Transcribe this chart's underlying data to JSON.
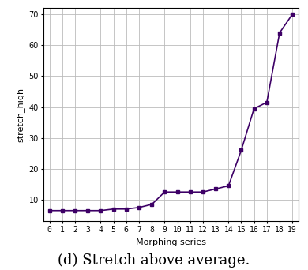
{
  "x": [
    0,
    1,
    2,
    3,
    4,
    5,
    6,
    7,
    8,
    9,
    10,
    11,
    12,
    13,
    14,
    15,
    16,
    17,
    18,
    19
  ],
  "y": [
    6.5,
    6.5,
    6.5,
    6.5,
    6.5,
    7.0,
    7.0,
    7.5,
    8.5,
    12.5,
    12.5,
    12.5,
    12.5,
    13.5,
    14.5,
    26.0,
    39.5,
    41.5,
    64.0,
    70.0
  ],
  "line_color": "#3d0066",
  "marker": "s",
  "marker_size": 2.5,
  "linewidth": 1.2,
  "xlabel": "Morphing series",
  "ylabel": "stretch_high",
  "xlim": [
    -0.5,
    19.5
  ],
  "ylim": [
    3,
    72
  ],
  "yticks": [
    10,
    20,
    30,
    40,
    50,
    60,
    70
  ],
  "xticks": [
    0,
    1,
    2,
    3,
    4,
    5,
    6,
    7,
    8,
    9,
    10,
    11,
    12,
    13,
    14,
    15,
    16,
    17,
    18,
    19
  ],
  "caption": "(d) Stretch above average.",
  "grid": true,
  "grid_color": "#bbbbbb",
  "background_color": "#ffffff",
  "tick_fontsize": 7,
  "label_fontsize": 8,
  "caption_fontsize": 13
}
